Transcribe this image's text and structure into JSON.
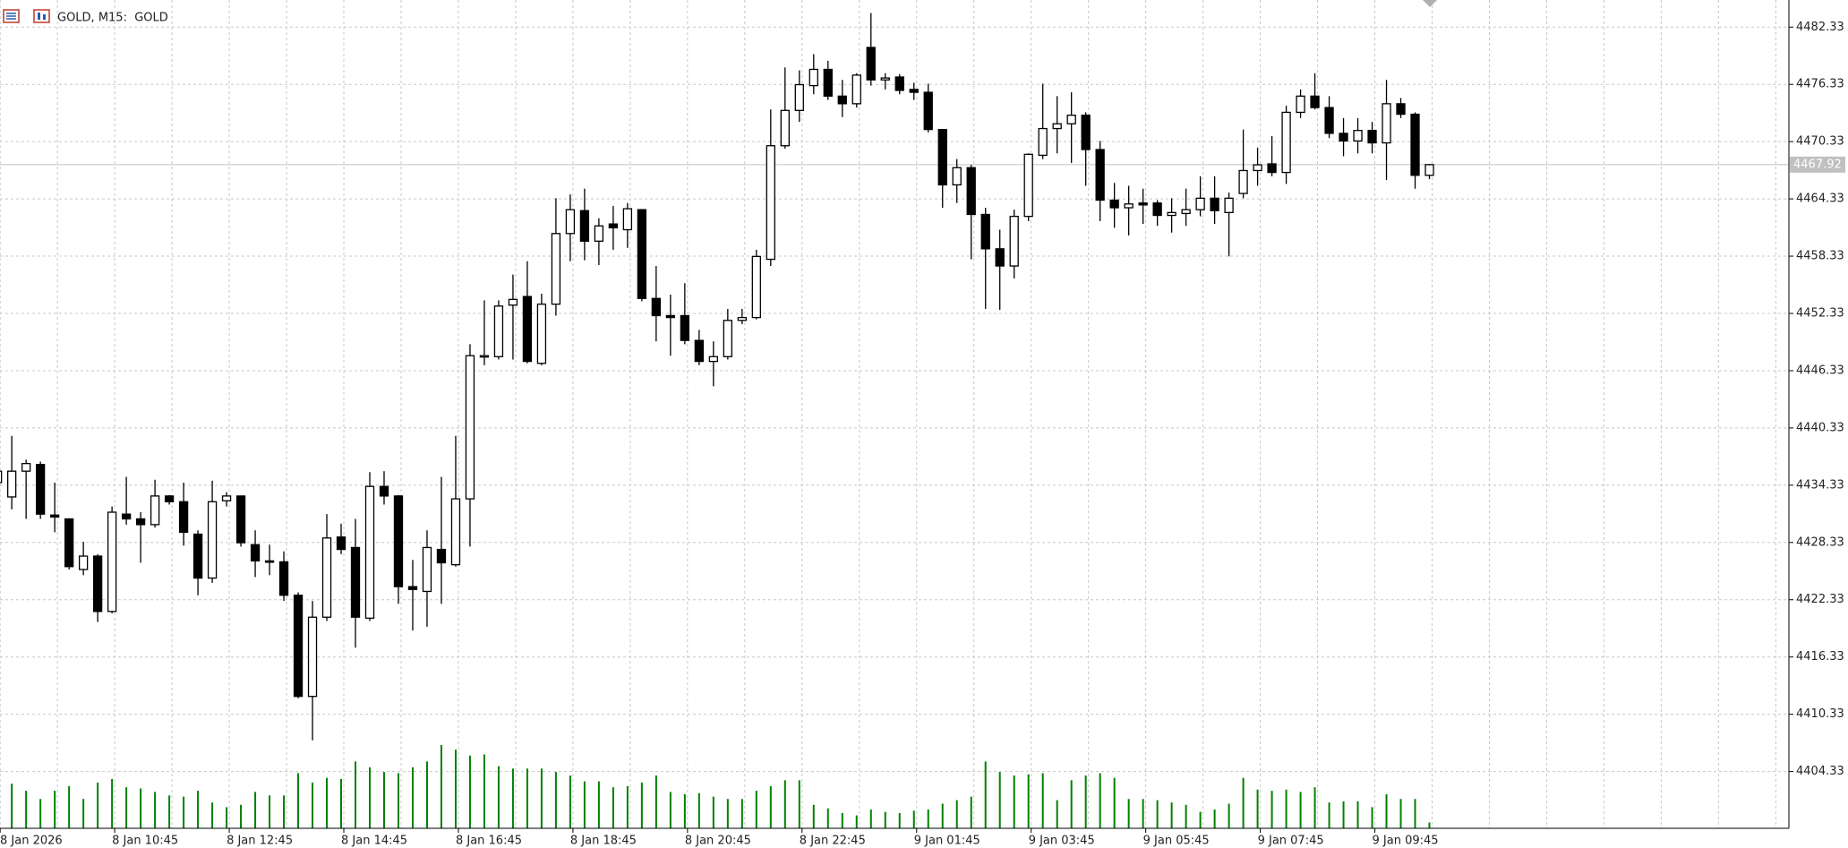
{
  "chart_data": {
    "type": "candlestick",
    "title": "GOLD, M15:  GOLD",
    "categories": [
      "8 Jan 2026",
      null,
      null,
      null,
      null,
      null,
      null,
      null,
      "8 Jan 10:45",
      null,
      null,
      null,
      null,
      null,
      null,
      null,
      "8 Jan 12:45",
      null,
      null,
      null,
      null,
      null,
      null,
      null,
      "8 Jan 14:45",
      null,
      null,
      null,
      null,
      null,
      null,
      null,
      "8 Jan 16:45",
      null,
      null,
      null,
      null,
      null,
      null,
      null,
      "8 Jan 18:45",
      null,
      null,
      null,
      null,
      null,
      null,
      null,
      "8 Jan 20:45",
      null,
      null,
      null,
      null,
      null,
      null,
      null,
      "8 Jan 22:45",
      null,
      null,
      null,
      null,
      null,
      null,
      null,
      "9 Jan 01:45",
      null,
      null,
      null,
      null,
      null,
      null,
      null,
      "9 Jan 03:45",
      null,
      null,
      null,
      null,
      null,
      null,
      null,
      "9 Jan 05:45",
      null,
      null,
      null,
      null,
      null,
      null,
      null,
      "9 Jan 07:45",
      null,
      null,
      null,
      null,
      null,
      null,
      null,
      "9 Jan 09:45",
      null,
      null,
      null,
      null
    ],
    "open": [
      4434.6,
      4433.1,
      4435.8,
      4436.5,
      4431.2,
      4430.8,
      4425.5,
      4426.9,
      4421.1,
      4431.3,
      4430.8,
      4430.2,
      4433.2,
      4432.6,
      4429.2,
      4424.6,
      4432.7,
      4433.2,
      4428.1,
      4426.4,
      4426.3,
      4422.8,
      4412.2,
      4420.5,
      4428.9,
      4427.8,
      4420.4,
      4434.2,
      4433.2,
      4423.7,
      4423.2,
      4427.6,
      4426.0,
      4432.9,
      4447.8,
      4447.8,
      4453.2,
      4454.1,
      4447.1,
      4453.3,
      4460.7,
      4463.1,
      4459.9,
      4461.7,
      4461.1,
      4463.2,
      4453.9,
      4452.1,
      4452.1,
      4449.5,
      4447.3,
      4447.8,
      4451.6,
      4451.9,
      4458.0,
      4469.9,
      4473.6,
      4476.2,
      4477.9,
      4475.1,
      4474.3,
      4480.2,
      4476.8,
      4477.1,
      4475.8,
      4475.5,
      4471.6,
      4465.8,
      4467.6,
      4462.7,
      4459.1,
      4457.3,
      4462.5,
      4468.9,
      4471.7,
      4472.2,
      4473.1,
      4469.5,
      4464.2,
      4463.4,
      4463.9,
      4463.9,
      4462.6,
      4462.8,
      4463.2,
      4464.4,
      4462.9,
      4464.9,
      4467.3,
      4468.0,
      4467.1,
      4473.4,
      4475.1,
      4473.9,
      4471.2,
      4470.4,
      4471.5,
      4470.2,
      4474.3,
      4473.2,
      4466.8
    ],
    "high": [
      4436.4,
      4439.5,
      4437.0,
      4436.8,
      4434.6,
      4430.8,
      4428.4,
      4427.1,
      4432.1,
      4435.2,
      4431.5,
      4434.9,
      4433.3,
      4434.6,
      4429.6,
      4434.8,
      4433.6,
      4433.2,
      4429.6,
      4428.1,
      4427.4,
      4423.1,
      4422.2,
      4431.3,
      4430.3,
      4430.8,
      4435.7,
      4435.8,
      4433.3,
      4426.5,
      4429.6,
      4435.2,
      4439.5,
      4449.1,
      4453.7,
      4453.7,
      4456.4,
      4457.8,
      4454.4,
      4464.4,
      4464.8,
      4465.4,
      4462.3,
      4463.6,
      4463.9,
      4463.2,
      4457.3,
      4454.3,
      4455.5,
      4450.6,
      4449.4,
      4452.8,
      4452.8,
      4459.0,
      4473.7,
      4478.1,
      4477.8,
      4479.5,
      4478.8,
      4476.8,
      4477.5,
      4483.8,
      4477.5,
      4477.4,
      4476.5,
      4476.4,
      4471.6,
      4468.5,
      4467.9,
      4463.4,
      4461.1,
      4463.2,
      4469.1,
      4476.4,
      4475.1,
      4475.5,
      4473.4,
      4470.4,
      4466.0,
      4465.7,
      4465.4,
      4464.2,
      4464.4,
      4465.4,
      4466.7,
      4466.7,
      4465.0,
      4471.6,
      4469.7,
      4470.9,
      4474.1,
      4475.8,
      4477.5,
      4475.1,
      4472.8,
      4472.8,
      4472.4,
      4476.8,
      4474.9,
      4473.4,
      4468.0
    ],
    "low": [
      4433.9,
      4431.8,
      4430.8,
      4430.8,
      4429.4,
      4425.5,
      4424.9,
      4420.0,
      4420.9,
      4430.2,
      4426.2,
      4429.9,
      4432.3,
      4428.0,
      4422.8,
      4424.1,
      4432.1,
      4427.9,
      4424.7,
      4424.9,
      4422.2,
      4412.0,
      4407.6,
      4420.1,
      4427.1,
      4417.3,
      4420.1,
      4432.3,
      4421.9,
      4419.1,
      4419.5,
      4421.9,
      4425.8,
      4427.9,
      4446.9,
      4447.5,
      4447.5,
      4447.1,
      4446.9,
      4452.1,
      4457.8,
      4457.9,
      4457.4,
      4459.0,
      4459.2,
      4453.6,
      4449.4,
      4447.9,
      4449.1,
      4446.9,
      4444.7,
      4447.5,
      4451.2,
      4451.7,
      4457.3,
      4469.6,
      4472.4,
      4475.3,
      4474.7,
      4472.9,
      4473.9,
      4476.2,
      4475.8,
      4475.3,
      4474.7,
      4471.3,
      4463.4,
      4463.9,
      4458.0,
      4452.8,
      4452.7,
      4456.0,
      4462.0,
      4468.5,
      4469.1,
      4468.1,
      4465.7,
      4462.0,
      4461.3,
      4460.5,
      4461.7,
      4461.5,
      4460.8,
      4461.5,
      4462.5,
      4461.7,
      4458.3,
      4464.4,
      4465.7,
      4466.7,
      4465.9,
      4472.8,
      4473.7,
      4470.7,
      4468.8,
      4469.1,
      4469.1,
      4466.3,
      4472.8,
      4465.4,
      4466.4
    ],
    "close": [
      4435.8,
      4435.8,
      4436.6,
      4431.3,
      4431.0,
      4425.8,
      4426.9,
      4421.1,
      4431.5,
      4430.8,
      4430.2,
      4433.2,
      4432.6,
      4429.4,
      4424.6,
      4432.6,
      4433.2,
      4428.3,
      4426.4,
      4426.3,
      4422.8,
      4412.2,
      4420.5,
      4428.8,
      4427.6,
      4420.5,
      4434.2,
      4433.2,
      4423.7,
      4423.4,
      4427.8,
      4426.2,
      4432.9,
      4447.9,
      4447.9,
      4453.1,
      4453.8,
      4447.3,
      4453.3,
      4460.7,
      4463.2,
      4459.9,
      4461.5,
      4461.3,
      4463.3,
      4453.9,
      4452.1,
      4451.9,
      4449.5,
      4447.3,
      4447.8,
      4451.6,
      4451.9,
      4458.3,
      4469.9,
      4473.6,
      4476.3,
      4477.9,
      4475.1,
      4474.3,
      4477.3,
      4476.8,
      4477.0,
      4475.7,
      4475.5,
      4471.6,
      4465.8,
      4467.6,
      4462.7,
      4459.1,
      4457.3,
      4462.5,
      4469.0,
      4471.7,
      4472.2,
      4473.1,
      4469.5,
      4464.2,
      4463.4,
      4463.8,
      4463.7,
      4462.6,
      4462.9,
      4463.2,
      4464.4,
      4463.1,
      4464.4,
      4467.3,
      4467.9,
      4467.1,
      4473.4,
      4475.1,
      4473.9,
      4471.2,
      4470.4,
      4471.5,
      4470.2,
      4474.3,
      4473.2,
      4466.8,
      4467.92
    ],
    "volume": [
      38,
      38,
      32,
      25,
      32,
      36,
      25,
      39,
      42,
      35,
      34,
      31,
      28,
      27,
      32,
      22,
      18,
      20,
      31,
      28,
      28,
      47,
      39,
      43,
      42,
      57,
      52,
      48,
      47,
      52,
      57,
      71,
      67,
      62,
      63,
      53,
      51,
      51,
      51,
      48,
      45,
      40,
      40,
      35,
      36,
      39,
      45,
      31,
      29,
      30,
      27,
      25,
      25,
      32,
      36,
      41,
      41,
      20,
      17,
      13,
      11,
      16,
      14,
      13,
      15,
      16,
      21,
      24,
      27,
      57,
      48,
      45,
      46,
      47,
      24,
      41,
      45,
      47,
      43,
      25,
      25,
      24,
      22,
      20,
      14,
      16,
      21,
      43,
      33,
      32,
      33,
      31,
      35,
      22,
      23,
      23,
      18,
      29,
      25,
      25,
      5
    ],
    "last_price": 4467.92,
    "ylim": [
      4398.38,
      4485.17
    ],
    "yticks": [
      4482.33,
      4476.33,
      4470.33,
      4464.33,
      4458.33,
      4452.33,
      4446.33,
      4440.33,
      4434.33,
      4428.33,
      4422.33,
      4416.33,
      4410.33,
      4404.33
    ],
    "grid": true,
    "up_color": "#ffffff",
    "down_color": "#000000",
    "volume_color": "#008000"
  }
}
